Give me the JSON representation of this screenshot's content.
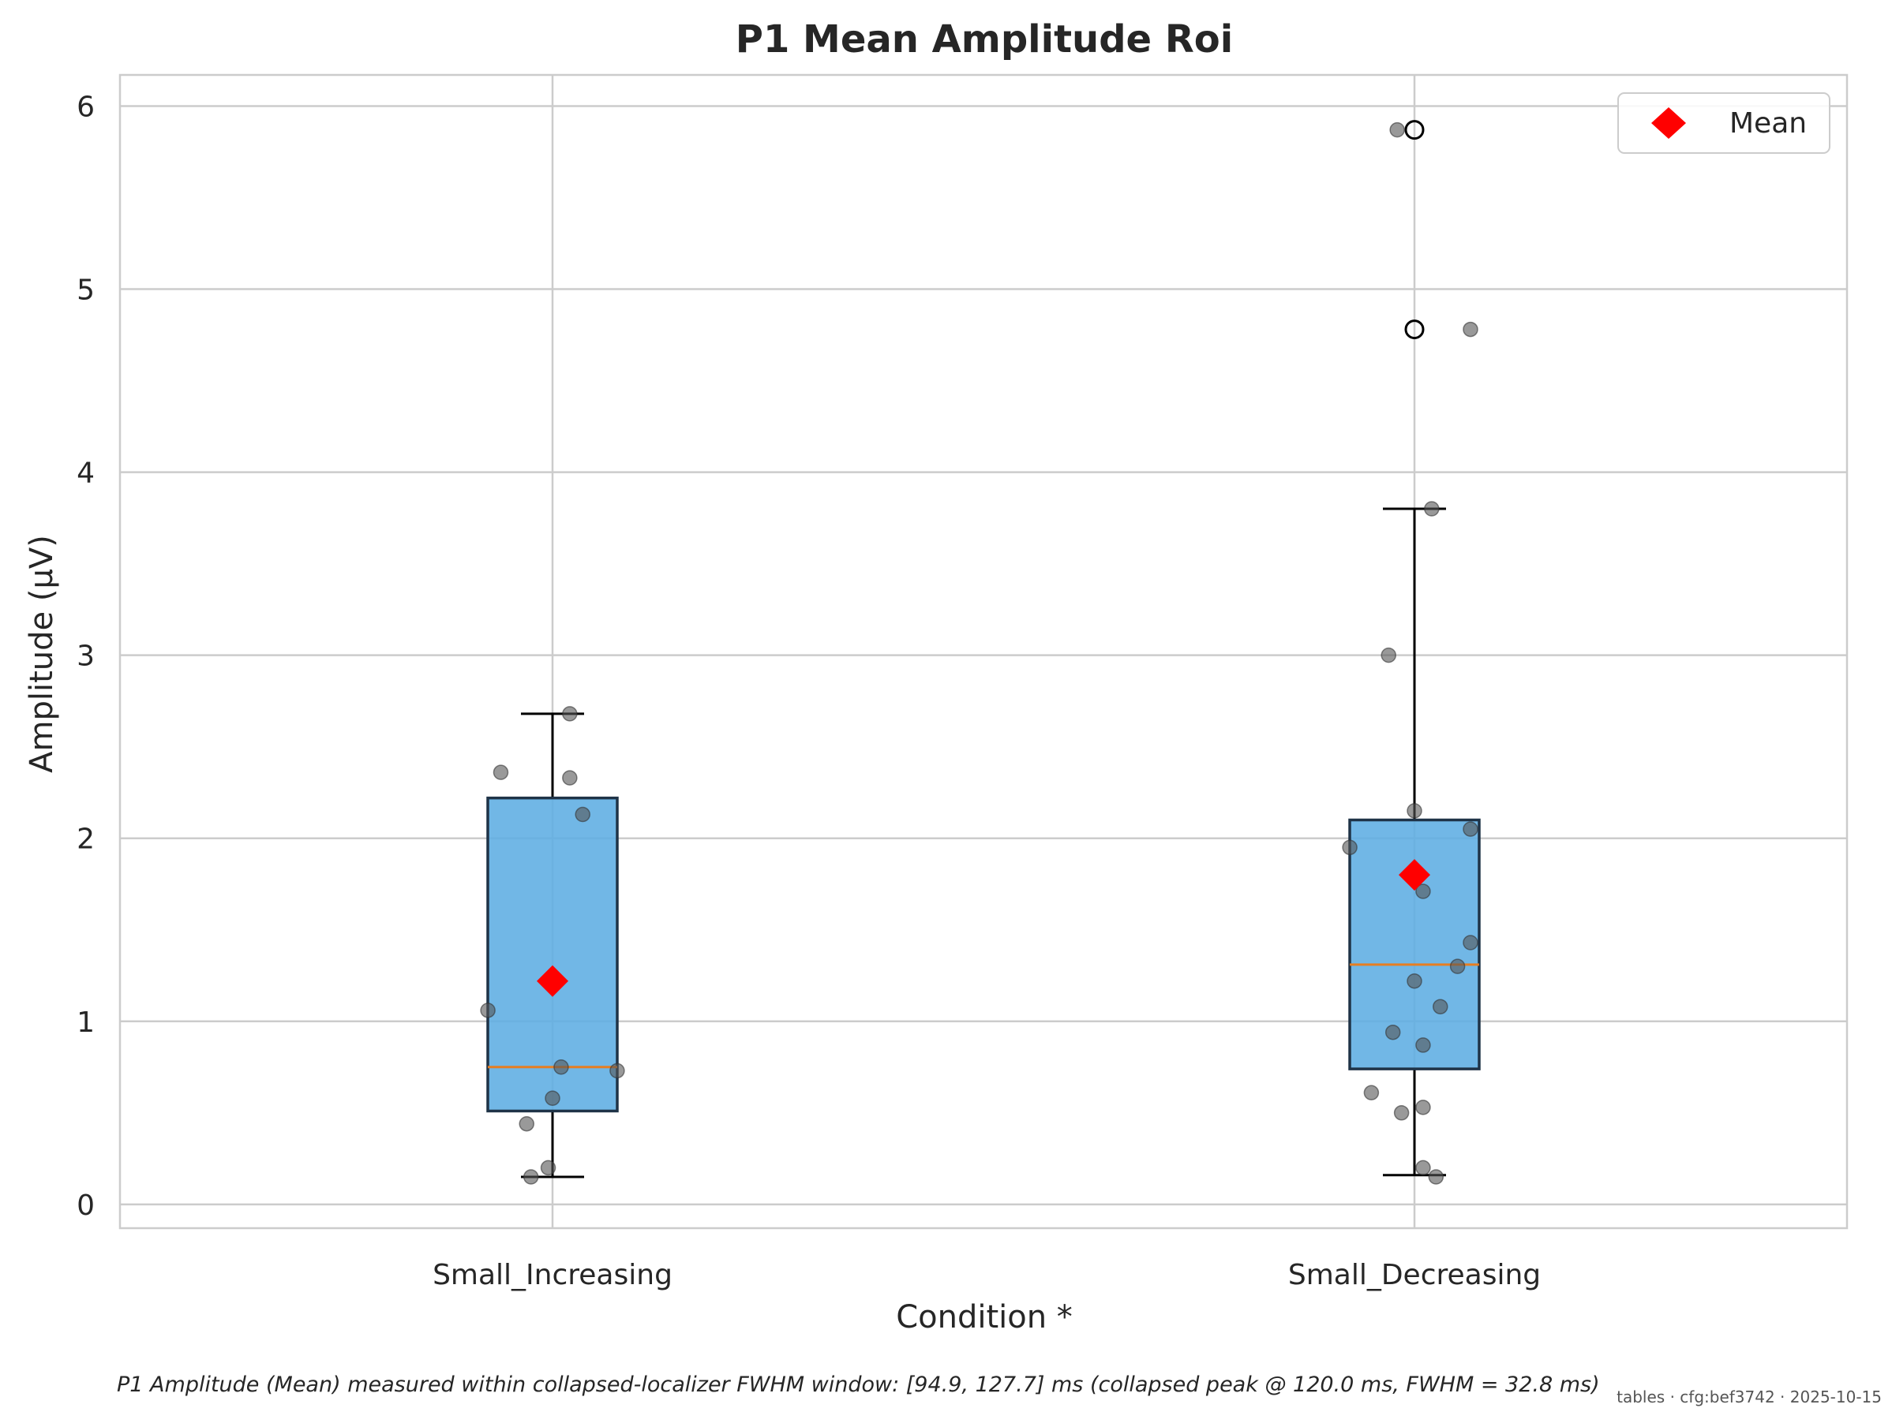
{
  "chart_data": {
    "type": "box",
    "title": "P1 Mean Amplitude Roi",
    "xlabel": "Condition *",
    "ylabel": "Amplitude (μV)",
    "categories": [
      "Small_Increasing",
      "Small_Decreasing"
    ],
    "ylim": [
      -0.13,
      6.17
    ],
    "yticks": [
      0,
      1,
      2,
      3,
      4,
      5,
      6
    ],
    "grid": true,
    "legend": {
      "placement": "top-right",
      "entries": [
        {
          "label": "Mean",
          "marker": "diamond",
          "color": "#ff0000"
        }
      ]
    },
    "box_color": "#5dade2",
    "median_color": "#e67e22",
    "point_color": "#555555",
    "mean_color": "#ff0000",
    "boxes": [
      {
        "name": "Small_Increasing",
        "whisker_low": 0.15,
        "q1": 0.51,
        "median": 0.75,
        "q3": 2.22,
        "whisker_high": 2.68,
        "mean": 1.22,
        "outliers": [],
        "points": [
          {
            "jitter": 0.02,
            "y": 2.68
          },
          {
            "jitter": -0.06,
            "y": 2.36
          },
          {
            "jitter": 0.02,
            "y": 2.33
          },
          {
            "jitter": 0.035,
            "y": 2.13
          },
          {
            "jitter": -0.075,
            "y": 1.06
          },
          {
            "jitter": 0.01,
            "y": 0.75
          },
          {
            "jitter": 0.075,
            "y": 0.73
          },
          {
            "jitter": 0.0,
            "y": 0.58
          },
          {
            "jitter": -0.03,
            "y": 0.44
          },
          {
            "jitter": -0.005,
            "y": 0.2
          },
          {
            "jitter": -0.025,
            "y": 0.15
          }
        ]
      },
      {
        "name": "Small_Decreasing",
        "whisker_low": 0.16,
        "q1": 0.74,
        "median": 1.31,
        "q3": 2.1,
        "whisker_high": 3.8,
        "mean": 1.8,
        "outliers": [
          5.87,
          4.78
        ],
        "points": [
          {
            "jitter": -0.02,
            "y": 5.87
          },
          {
            "jitter": 0.065,
            "y": 4.78
          },
          {
            "jitter": 0.02,
            "y": 3.8
          },
          {
            "jitter": -0.03,
            "y": 3.0
          },
          {
            "jitter": 0.0,
            "y": 2.15
          },
          {
            "jitter": 0.065,
            "y": 2.05
          },
          {
            "jitter": -0.075,
            "y": 1.95
          },
          {
            "jitter": 0.01,
            "y": 1.71
          },
          {
            "jitter": 0.065,
            "y": 1.43
          },
          {
            "jitter": 0.05,
            "y": 1.3
          },
          {
            "jitter": 0.0,
            "y": 1.22
          },
          {
            "jitter": 0.03,
            "y": 1.08
          },
          {
            "jitter": -0.025,
            "y": 0.94
          },
          {
            "jitter": 0.01,
            "y": 0.87
          },
          {
            "jitter": -0.05,
            "y": 0.61
          },
          {
            "jitter": -0.015,
            "y": 0.5
          },
          {
            "jitter": 0.01,
            "y": 0.53
          },
          {
            "jitter": 0.01,
            "y": 0.2
          },
          {
            "jitter": 0.025,
            "y": 0.15
          }
        ]
      }
    ]
  },
  "caption": "P1 Amplitude (Mean) measured within collapsed-localizer FWHM window: [94.9, 127.7] ms (collapsed peak @ 120.0 ms, FWHM = 32.8 ms)",
  "footer": "tables · cfg:bef3742 · 2025-10-15"
}
